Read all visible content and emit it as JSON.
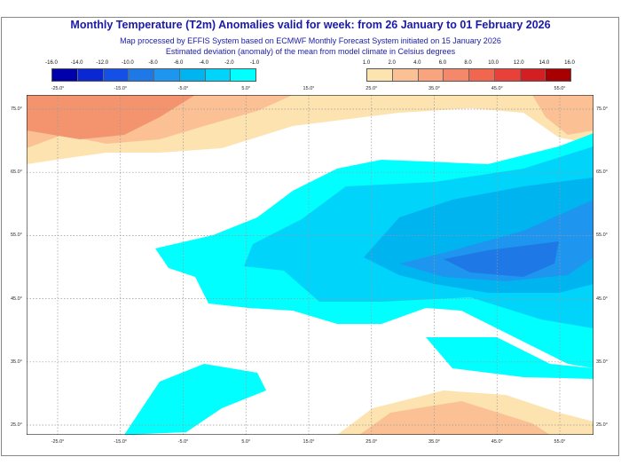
{
  "title": "Monthly Temperature (T2m) Anomalies valid for week: from 26 January to 01 February 2026",
  "subtitle1": "Map processed by EFFIS System based on ECMWF Monthly Forecast System initiated on 15 January 2026",
  "subtitle2": "Estimated deviation (anomaly) of the mean from model climate in Celsius degrees",
  "legend_cold": {
    "ticks": [
      "-16.0",
      "-14.0",
      "-12.0",
      "-10.0",
      "-8.0",
      "-6.0",
      "-4.0",
      "-2.0",
      "-1.0"
    ],
    "colors": [
      "#0000aa",
      "#0a28d2",
      "#1450e6",
      "#1e78e6",
      "#1e96f0",
      "#00b4f0",
      "#00d4fa",
      "#00ffff"
    ]
  },
  "legend_warm": {
    "ticks": [
      "1.0",
      "2.0",
      "4.0",
      "6.0",
      "8.0",
      "10.0",
      "12.0",
      "14.0",
      "16.0"
    ],
    "colors": [
      "#fde3b0",
      "#fbc195",
      "#f8a47e",
      "#f3886a",
      "#f0664f",
      "#e8413a",
      "#d11f22",
      "#a80000"
    ]
  },
  "lon_labels": [
    "-25.0°",
    "-15.0°",
    "-5.0°",
    "5.0°",
    "15.0°",
    "25.0°",
    "35.0°",
    "45.0°",
    "55.0°"
  ],
  "lat_labels": [
    "75.0°",
    "65.0°",
    "55.0°",
    "45.0°",
    "35.0°",
    "25.0°"
  ]
}
